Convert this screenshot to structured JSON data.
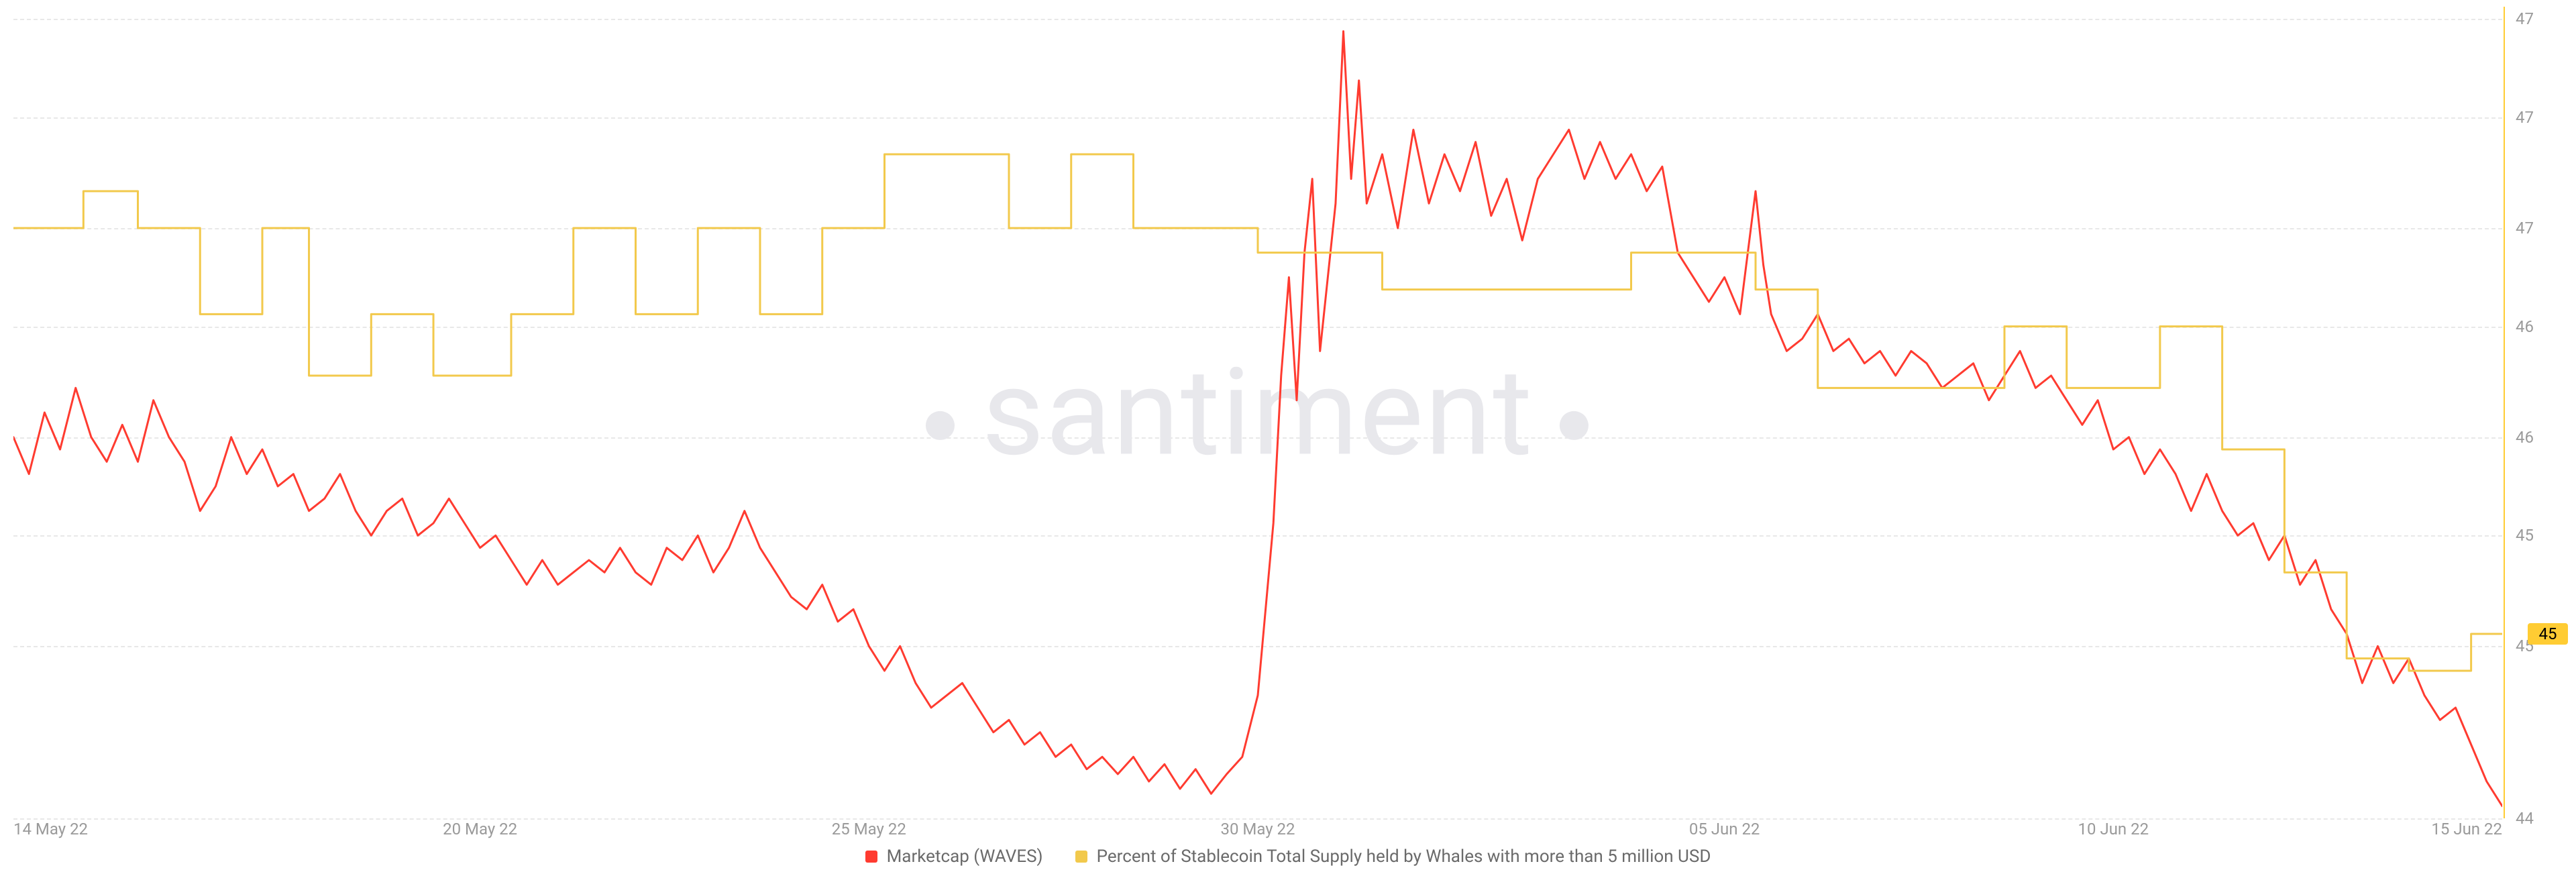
{
  "watermark": "santiment",
  "chart": {
    "type": "line",
    "background_color": "#ffffff",
    "grid_color": "#e8e8e8",
    "grid_dash": "6,8",
    "axis_label_color": "#9a9a9a",
    "axis_label_fontsize": 24,
    "right_axis_border_color": "#ffcc33",
    "x": {
      "domain_start": 0,
      "domain_end": 32,
      "ticks": [
        {
          "pos": 0,
          "label": "14 May 22"
        },
        {
          "pos": 6,
          "label": "20 May 22"
        },
        {
          "pos": 11,
          "label": "25 May 22"
        },
        {
          "pos": 16,
          "label": "30 May 22"
        },
        {
          "pos": 22,
          "label": "05 Jun 22"
        },
        {
          "pos": 27,
          "label": "10 Jun 22"
        },
        {
          "pos": 32,
          "label": "15 Jun 22"
        }
      ]
    },
    "y": {
      "min": 44,
      "max": 47.3,
      "ticks": [
        47,
        47,
        47,
        46,
        46,
        45,
        45,
        44
      ],
      "grid_at": [
        47.25,
        46.85,
        46.4,
        46.0,
        45.55,
        45.15,
        44.7,
        44.0
      ],
      "current_value_badge": {
        "value": "45",
        "at": 44.75,
        "bg": "#ffcc33",
        "fg": "#000000"
      }
    },
    "series": [
      {
        "id": "marketcap",
        "label": "Marketcap (WAVES)",
        "color": "#ff3b30",
        "line_width": 3,
        "style": "smooth",
        "points": [
          [
            0.0,
            45.55
          ],
          [
            0.2,
            45.4
          ],
          [
            0.4,
            45.65
          ],
          [
            0.6,
            45.5
          ],
          [
            0.8,
            45.75
          ],
          [
            1.0,
            45.55
          ],
          [
            1.2,
            45.45
          ],
          [
            1.4,
            45.6
          ],
          [
            1.6,
            45.45
          ],
          [
            1.8,
            45.7
          ],
          [
            2.0,
            45.55
          ],
          [
            2.2,
            45.45
          ],
          [
            2.4,
            45.25
          ],
          [
            2.6,
            45.35
          ],
          [
            2.8,
            45.55
          ],
          [
            3.0,
            45.4
          ],
          [
            3.2,
            45.5
          ],
          [
            3.4,
            45.35
          ],
          [
            3.6,
            45.4
          ],
          [
            3.8,
            45.25
          ],
          [
            4.0,
            45.3
          ],
          [
            4.2,
            45.4
          ],
          [
            4.4,
            45.25
          ],
          [
            4.6,
            45.15
          ],
          [
            4.8,
            45.25
          ],
          [
            5.0,
            45.3
          ],
          [
            5.2,
            45.15
          ],
          [
            5.4,
            45.2
          ],
          [
            5.6,
            45.3
          ],
          [
            5.8,
            45.2
          ],
          [
            6.0,
            45.1
          ],
          [
            6.2,
            45.15
          ],
          [
            6.4,
            45.05
          ],
          [
            6.6,
            44.95
          ],
          [
            6.8,
            45.05
          ],
          [
            7.0,
            44.95
          ],
          [
            7.2,
            45.0
          ],
          [
            7.4,
            45.05
          ],
          [
            7.6,
            45.0
          ],
          [
            7.8,
            45.1
          ],
          [
            8.0,
            45.0
          ],
          [
            8.2,
            44.95
          ],
          [
            8.4,
            45.1
          ],
          [
            8.6,
            45.05
          ],
          [
            8.8,
            45.15
          ],
          [
            9.0,
            45.0
          ],
          [
            9.2,
            45.1
          ],
          [
            9.4,
            45.25
          ],
          [
            9.6,
            45.1
          ],
          [
            9.8,
            45.0
          ],
          [
            10.0,
            44.9
          ],
          [
            10.2,
            44.85
          ],
          [
            10.4,
            44.95
          ],
          [
            10.6,
            44.8
          ],
          [
            10.8,
            44.85
          ],
          [
            11.0,
            44.7
          ],
          [
            11.2,
            44.6
          ],
          [
            11.4,
            44.7
          ],
          [
            11.6,
            44.55
          ],
          [
            11.8,
            44.45
          ],
          [
            12.0,
            44.5
          ],
          [
            12.2,
            44.55
          ],
          [
            12.4,
            44.45
          ],
          [
            12.6,
            44.35
          ],
          [
            12.8,
            44.4
          ],
          [
            13.0,
            44.3
          ],
          [
            13.2,
            44.35
          ],
          [
            13.4,
            44.25
          ],
          [
            13.6,
            44.3
          ],
          [
            13.8,
            44.2
          ],
          [
            14.0,
            44.25
          ],
          [
            14.2,
            44.18
          ],
          [
            14.4,
            44.25
          ],
          [
            14.6,
            44.15
          ],
          [
            14.8,
            44.22
          ],
          [
            15.0,
            44.12
          ],
          [
            15.2,
            44.2
          ],
          [
            15.4,
            44.1
          ],
          [
            15.6,
            44.18
          ],
          [
            15.8,
            44.25
          ],
          [
            16.0,
            44.5
          ],
          [
            16.2,
            45.2
          ],
          [
            16.3,
            45.8
          ],
          [
            16.4,
            46.2
          ],
          [
            16.5,
            45.7
          ],
          [
            16.6,
            46.3
          ],
          [
            16.7,
            46.6
          ],
          [
            16.8,
            45.9
          ],
          [
            17.0,
            46.5
          ],
          [
            17.1,
            47.2
          ],
          [
            17.2,
            46.6
          ],
          [
            17.3,
            47.0
          ],
          [
            17.4,
            46.5
          ],
          [
            17.6,
            46.7
          ],
          [
            17.8,
            46.4
          ],
          [
            18.0,
            46.8
          ],
          [
            18.2,
            46.5
          ],
          [
            18.4,
            46.7
          ],
          [
            18.6,
            46.55
          ],
          [
            18.8,
            46.75
          ],
          [
            19.0,
            46.45
          ],
          [
            19.2,
            46.6
          ],
          [
            19.4,
            46.35
          ],
          [
            19.6,
            46.6
          ],
          [
            19.8,
            46.7
          ],
          [
            20.0,
            46.8
          ],
          [
            20.2,
            46.6
          ],
          [
            20.4,
            46.75
          ],
          [
            20.6,
            46.6
          ],
          [
            20.8,
            46.7
          ],
          [
            21.0,
            46.55
          ],
          [
            21.2,
            46.65
          ],
          [
            21.4,
            46.3
          ],
          [
            21.6,
            46.2
          ],
          [
            21.8,
            46.1
          ],
          [
            22.0,
            46.2
          ],
          [
            22.2,
            46.05
          ],
          [
            22.4,
            46.55
          ],
          [
            22.5,
            46.25
          ],
          [
            22.6,
            46.05
          ],
          [
            22.8,
            45.9
          ],
          [
            23.0,
            45.95
          ],
          [
            23.2,
            46.05
          ],
          [
            23.4,
            45.9
          ],
          [
            23.6,
            45.95
          ],
          [
            23.8,
            45.85
          ],
          [
            24.0,
            45.9
          ],
          [
            24.2,
            45.8
          ],
          [
            24.4,
            45.9
          ],
          [
            24.6,
            45.85
          ],
          [
            24.8,
            45.75
          ],
          [
            25.0,
            45.8
          ],
          [
            25.2,
            45.85
          ],
          [
            25.4,
            45.7
          ],
          [
            25.6,
            45.8
          ],
          [
            25.8,
            45.9
          ],
          [
            26.0,
            45.75
          ],
          [
            26.2,
            45.8
          ],
          [
            26.4,
            45.7
          ],
          [
            26.6,
            45.6
          ],
          [
            26.8,
            45.7
          ],
          [
            27.0,
            45.5
          ],
          [
            27.2,
            45.55
          ],
          [
            27.4,
            45.4
          ],
          [
            27.6,
            45.5
          ],
          [
            27.8,
            45.4
          ],
          [
            28.0,
            45.25
          ],
          [
            28.2,
            45.4
          ],
          [
            28.4,
            45.25
          ],
          [
            28.6,
            45.15
          ],
          [
            28.8,
            45.2
          ],
          [
            29.0,
            45.05
          ],
          [
            29.2,
            45.15
          ],
          [
            29.4,
            44.95
          ],
          [
            29.6,
            45.05
          ],
          [
            29.8,
            44.85
          ],
          [
            30.0,
            44.75
          ],
          [
            30.2,
            44.55
          ],
          [
            30.4,
            44.7
          ],
          [
            30.6,
            44.55
          ],
          [
            30.8,
            44.65
          ],
          [
            31.0,
            44.5
          ],
          [
            31.2,
            44.4
          ],
          [
            31.4,
            44.45
          ],
          [
            31.6,
            44.3
          ],
          [
            31.8,
            44.15
          ],
          [
            32.0,
            44.05
          ]
        ]
      },
      {
        "id": "whales",
        "label": "Percent of Stablecoin Total Supply held by Whales with more than 5 million USD",
        "color": "#f2c94c",
        "line_width": 3,
        "style": "step",
        "points": [
          [
            0.0,
            46.4
          ],
          [
            0.9,
            46.4
          ],
          [
            0.9,
            46.55
          ],
          [
            1.6,
            46.55
          ],
          [
            1.6,
            46.4
          ],
          [
            2.4,
            46.4
          ],
          [
            2.4,
            46.05
          ],
          [
            3.2,
            46.05
          ],
          [
            3.2,
            46.4
          ],
          [
            3.8,
            46.4
          ],
          [
            3.8,
            45.8
          ],
          [
            4.6,
            45.8
          ],
          [
            4.6,
            46.05
          ],
          [
            5.4,
            46.05
          ],
          [
            5.4,
            45.8
          ],
          [
            6.4,
            45.8
          ],
          [
            6.4,
            46.05
          ],
          [
            7.2,
            46.05
          ],
          [
            7.2,
            46.4
          ],
          [
            8.0,
            46.4
          ],
          [
            8.0,
            46.05
          ],
          [
            8.8,
            46.05
          ],
          [
            8.8,
            46.4
          ],
          [
            9.6,
            46.4
          ],
          [
            9.6,
            46.05
          ],
          [
            10.4,
            46.05
          ],
          [
            10.4,
            46.4
          ],
          [
            11.2,
            46.4
          ],
          [
            11.2,
            46.7
          ],
          [
            12.8,
            46.7
          ],
          [
            12.8,
            46.4
          ],
          [
            13.6,
            46.4
          ],
          [
            13.6,
            46.7
          ],
          [
            14.4,
            46.7
          ],
          [
            14.4,
            46.4
          ],
          [
            16.0,
            46.4
          ],
          [
            16.0,
            46.3
          ],
          [
            17.6,
            46.3
          ],
          [
            17.6,
            46.15
          ],
          [
            20.8,
            46.15
          ],
          [
            20.8,
            46.3
          ],
          [
            22.4,
            46.3
          ],
          [
            22.4,
            46.15
          ],
          [
            23.2,
            46.15
          ],
          [
            23.2,
            45.75
          ],
          [
            25.6,
            45.75
          ],
          [
            25.6,
            46.0
          ],
          [
            26.4,
            46.0
          ],
          [
            26.4,
            45.75
          ],
          [
            27.6,
            45.75
          ],
          [
            27.6,
            46.0
          ],
          [
            28.4,
            46.0
          ],
          [
            28.4,
            45.5
          ],
          [
            29.2,
            45.5
          ],
          [
            29.2,
            45.0
          ],
          [
            30.0,
            45.0
          ],
          [
            30.0,
            44.65
          ],
          [
            30.8,
            44.65
          ],
          [
            30.8,
            44.6
          ],
          [
            31.6,
            44.6
          ],
          [
            31.6,
            44.75
          ],
          [
            32.0,
            44.75
          ]
        ]
      }
    ]
  },
  "legend": {
    "fontsize": 26,
    "color": "#6a6a6a",
    "items": [
      {
        "swatch": "#ff3b30",
        "label": "Marketcap (WAVES)"
      },
      {
        "swatch": "#f2c94c",
        "label": "Percent of Stablecoin Total Supply held by Whales with more than 5 million USD"
      }
    ]
  }
}
